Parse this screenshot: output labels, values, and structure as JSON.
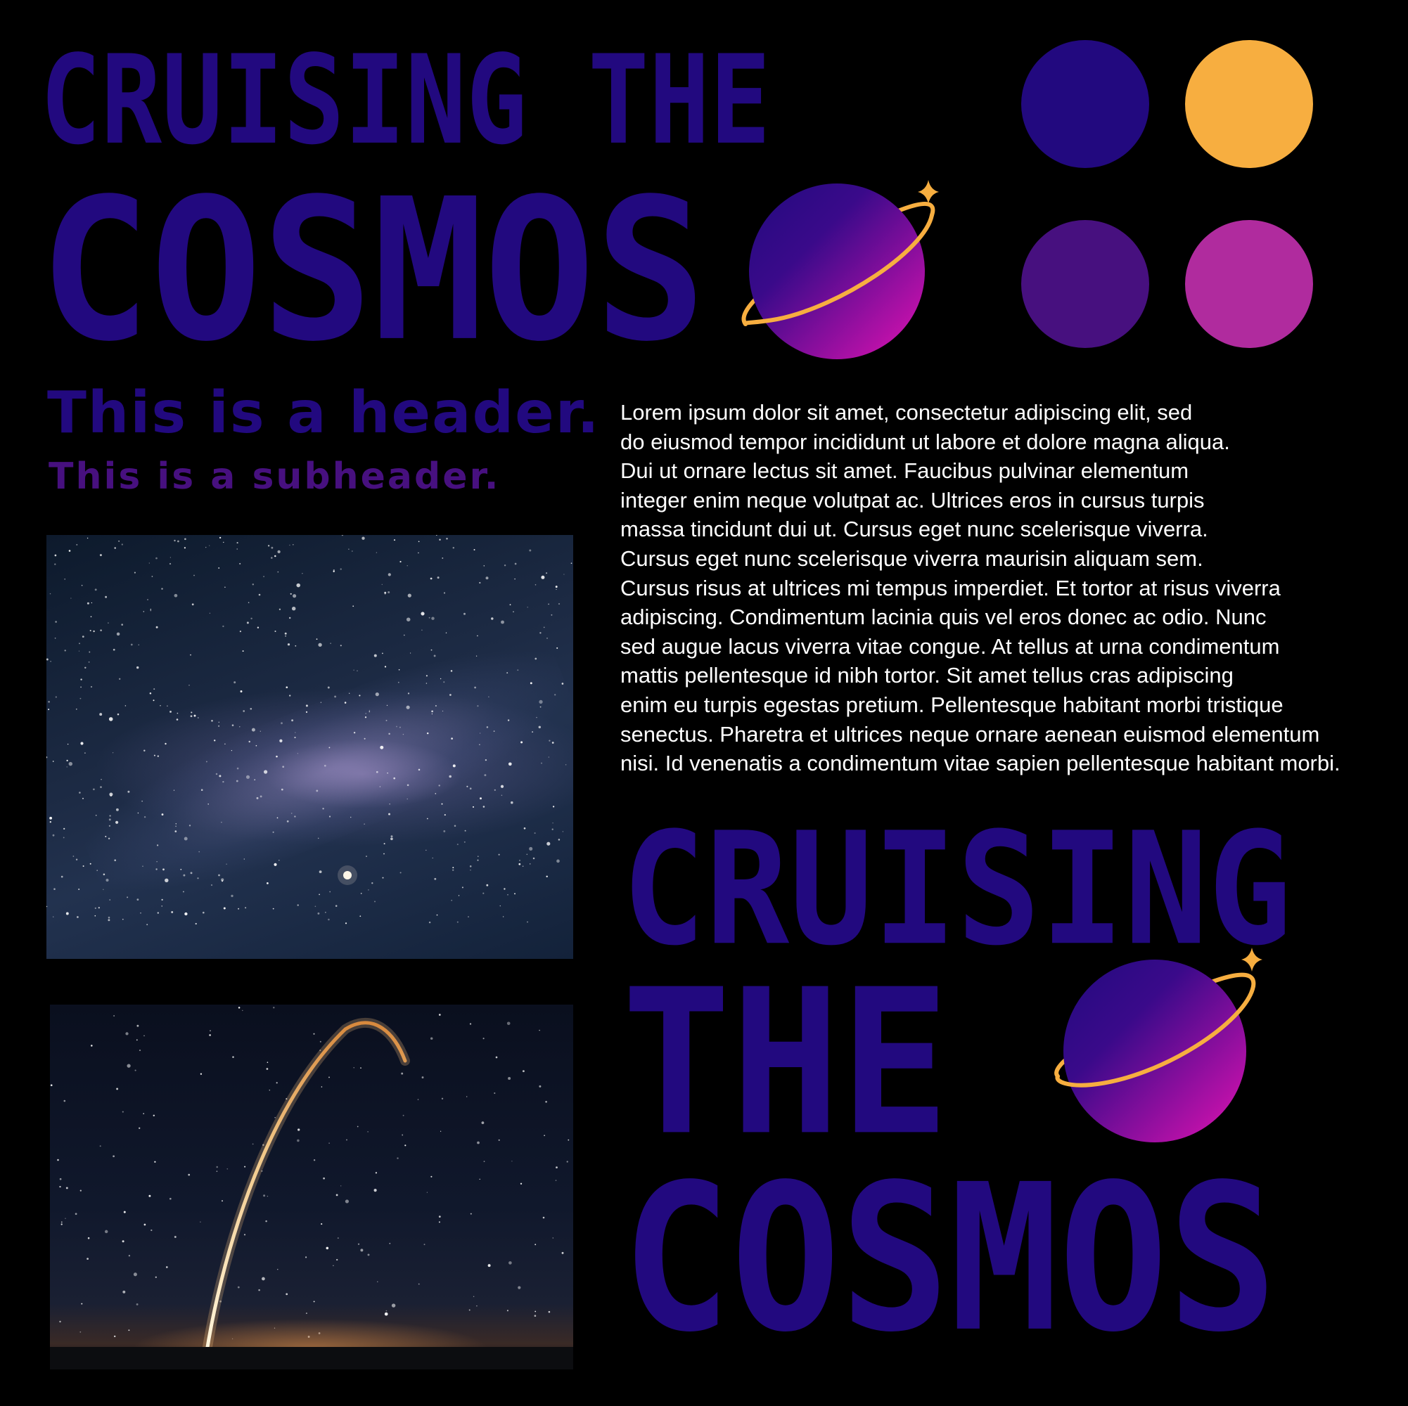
{
  "logo_top": {
    "line1": "CRUISING THE",
    "line2": "COSMOS"
  },
  "palette": [
    {
      "name": "deep-indigo",
      "hex": "#22097f"
    },
    {
      "name": "amber",
      "hex": "#f7ae40"
    },
    {
      "name": "violet",
      "hex": "#47107f"
    },
    {
      "name": "orchid",
      "hex": "#b02b9e"
    }
  ],
  "typography": {
    "header": "This is a header.",
    "subheader": "This is a subheader."
  },
  "body_text": [
    "Lorem ipsum dolor sit amet, consectetur adipiscing elit, sed",
    "do eiusmod tempor incididunt ut labore et dolore magna aliqua.",
    "Dui ut ornare lectus sit amet. Faucibus pulvinar elementum",
    "integer enim neque volutpat ac. Ultrices eros in cursus turpis",
    "massa tincidunt dui ut. Cursus eget nunc scelerisque viverra.",
    "Cursus eget nunc scelerisque viverra maurisin aliquam sem.",
    "Cursus risus at ultrices mi tempus imperdiet. Et tortor at risus viverra",
    "adipiscing. Condimentum lacinia quis vel eros donec ac odio. Nunc",
    "sed augue lacus viverra vitae congue. At tellus at urna condimentum",
    "mattis pellentesque id nibh tortor. Sit amet tellus cras adipiscing",
    "enim eu turpis egestas pretium. Pellentesque habitant morbi tristique",
    "senectus. Pharetra et ultrices neque ornare aenean euismod elementum",
    "nisi. Id venenatis a condimentum vitae sapien pellentesque habitant morbi."
  ],
  "logo_stacked": {
    "line1": "CRUISING",
    "line2": "THE",
    "line3": "COSMOS"
  },
  "colors": {
    "background": "#000000",
    "wordmark": "#22097f",
    "ring": "#f7ae40",
    "planet_gradient_start": "#22097f",
    "planet_gradient_end": "#e313b2",
    "body_text": "#ffffff"
  },
  "icons": {
    "planet": "planet-with-ring-and-sparkle-icon",
    "sparkle": "four-point-star-icon"
  }
}
